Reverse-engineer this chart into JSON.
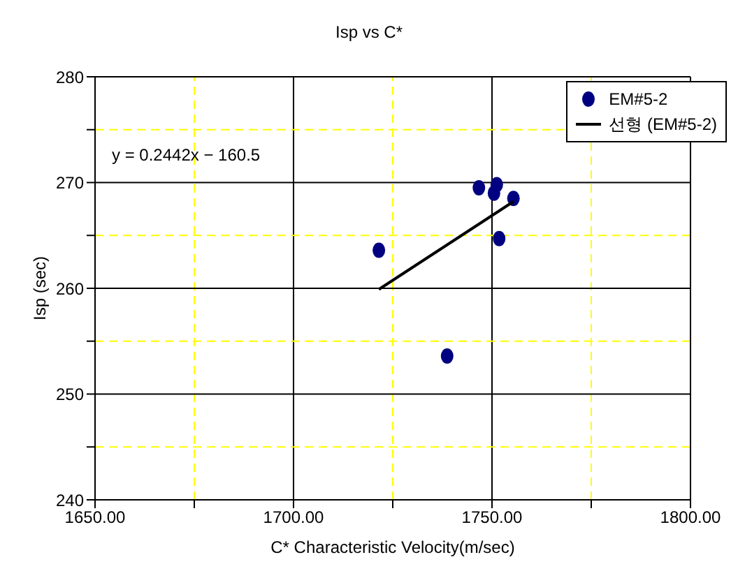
{
  "chart_data": {
    "type": "scatter",
    "title": "Isp vs C*",
    "xlabel": "C* Characteristic Velocity(m/sec)",
    "ylabel": "Isp  (sec)",
    "annotations": [
      "y = 0.2442x − 160.5"
    ],
    "series": [
      {
        "name": "EM#5-2",
        "color": "#000080",
        "x": [
          1721.5,
          1738.7,
          1746.7,
          1751.2,
          1750.5,
          1755.4,
          1751.8
        ],
        "values": [
          263.6,
          253.6,
          269.5,
          269.8,
          269.0,
          268.5,
          264.7
        ]
      },
      {
        "name": "선형 (EM#5-2)",
        "type": "line",
        "color": "#000000",
        "marker": "none",
        "x": [
          1721.5,
          1755.4
        ],
        "values": [
          259.9,
          268.2
        ]
      }
    ],
    "xlim": [
      1650,
      1800
    ],
    "xticks": [
      {
        "value": 1650,
        "label": "1650.00"
      },
      {
        "value": 1675,
        "label": null
      },
      {
        "value": 1700,
        "label": "1700.00"
      },
      {
        "value": 1725,
        "label": null
      },
      {
        "value": 1750,
        "label": "1750.00"
      },
      {
        "value": 1775,
        "label": null
      },
      {
        "value": 1800,
        "label": "1800.00"
      }
    ],
    "ylim": [
      240,
      280
    ],
    "yticks": [
      240,
      {
        "value": 245,
        "label": null
      },
      250,
      {
        "value": 255,
        "label": null
      },
      260,
      {
        "value": 265,
        "label": null
      },
      270,
      {
        "value": 275,
        "label": null
      },
      280
    ],
    "grid": true,
    "legend": "top right",
    "marker": "circle"
  }
}
